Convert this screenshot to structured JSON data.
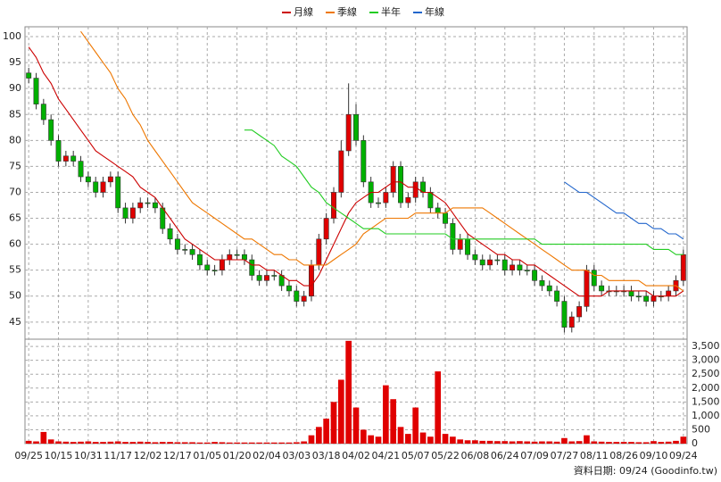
{
  "chart_data": {
    "type": "candlestick",
    "categories": [
      "09/25",
      null,
      null,
      null,
      "10/15",
      null,
      null,
      null,
      "10/31",
      null,
      null,
      null,
      "11/17",
      null,
      null,
      null,
      "12/02",
      null,
      null,
      null,
      "12/17",
      null,
      null,
      null,
      "01/05",
      null,
      null,
      null,
      "01/20",
      null,
      null,
      null,
      "02/04",
      null,
      null,
      null,
      "03/03",
      null,
      null,
      null,
      "03/18",
      null,
      null,
      null,
      "04/02",
      null,
      null,
      null,
      "04/21",
      null,
      null,
      null,
      "05/07",
      null,
      null,
      null,
      "05/22",
      null,
      null,
      null,
      "06/08",
      null,
      null,
      null,
      "06/24",
      null,
      null,
      null,
      "07/09",
      null,
      null,
      null,
      "07/27",
      null,
      null,
      null,
      "08/11",
      null,
      null,
      null,
      "08/26",
      null,
      null,
      null,
      "09/10",
      null,
      null,
      null,
      "09/24"
    ],
    "open": [
      93,
      92,
      87,
      84,
      80,
      76,
      77,
      76,
      73,
      72,
      70,
      72,
      73,
      67,
      65,
      67,
      68,
      68,
      67,
      63,
      61,
      59,
      59,
      58,
      56,
      55,
      55,
      57,
      58,
      58,
      57,
      54,
      53,
      54,
      54,
      52,
      51,
      49,
      50,
      56,
      61,
      65,
      70,
      78,
      85,
      80,
      72,
      68,
      68,
      70,
      75,
      68,
      69,
      72,
      70,
      67,
      66,
      64,
      59,
      61,
      58,
      57,
      56,
      57,
      57,
      55,
      56,
      55,
      55,
      53,
      52,
      51,
      49,
      44,
      46,
      48,
      55,
      52,
      51,
      51,
      51,
      51,
      50,
      50,
      49,
      50,
      50,
      51,
      53
    ],
    "high": [
      94,
      93,
      88,
      85,
      81,
      78,
      78,
      77,
      74,
      73,
      73,
      74,
      74,
      68,
      68,
      69,
      69,
      69,
      68,
      64,
      62,
      60,
      60,
      59,
      57,
      56,
      58,
      59,
      59,
      59,
      58,
      55,
      55,
      55,
      55,
      53,
      52,
      51,
      57,
      62,
      66,
      71,
      80,
      91,
      87,
      81,
      73,
      69,
      71,
      76,
      76,
      70,
      73,
      73,
      71,
      68,
      67,
      65,
      62,
      62,
      59,
      58,
      58,
      58,
      58,
      57,
      57,
      56,
      56,
      54,
      53,
      52,
      50,
      47,
      49,
      56,
      56,
      53,
      52,
      52,
      52,
      52,
      51,
      51,
      51,
      51,
      52,
      54,
      59
    ],
    "low": [
      91,
      86,
      83,
      79,
      75,
      75,
      75,
      72,
      71,
      69,
      69,
      71,
      66,
      64,
      64,
      66,
      67,
      66,
      62,
      60,
      58,
      58,
      57,
      55,
      54,
      54,
      54,
      56,
      57,
      56,
      53,
      52,
      52,
      53,
      51,
      50,
      48,
      48,
      49,
      55,
      60,
      64,
      69,
      77,
      79,
      71,
      67,
      67,
      67,
      69,
      67,
      67,
      68,
      69,
      66,
      65,
      63,
      58,
      58,
      57,
      56,
      55,
      55,
      56,
      54,
      54,
      54,
      54,
      52,
      51,
      50,
      48,
      43,
      43,
      45,
      47,
      51,
      50,
      50,
      50,
      50,
      49,
      49,
      48,
      48,
      49,
      49,
      50,
      52
    ],
    "close": [
      92,
      87,
      84,
      80,
      76,
      77,
      76,
      73,
      72,
      70,
      72,
      73,
      67,
      65,
      67,
      68,
      68,
      67,
      63,
      61,
      59,
      59,
      58,
      56,
      55,
      55,
      57,
      58,
      58,
      57,
      54,
      53,
      54,
      54,
      52,
      51,
      49,
      50,
      56,
      61,
      65,
      70,
      78,
      85,
      80,
      72,
      68,
      68,
      70,
      75,
      68,
      69,
      72,
      70,
      67,
      66,
      64,
      59,
      61,
      58,
      57,
      56,
      57,
      57,
      55,
      56,
      55,
      55,
      53,
      52,
      51,
      49,
      44,
      46,
      48,
      55,
      52,
      51,
      51,
      51,
      51,
      50,
      50,
      49,
      50,
      50,
      51,
      53,
      58
    ],
    "up_color": "#e00000",
    "down_color": "#00b000",
    "volume": {
      "color": "#e00000",
      "values": [
        100,
        80,
        420,
        150,
        80,
        70,
        60,
        70,
        80,
        60,
        60,
        70,
        80,
        60,
        60,
        70,
        60,
        50,
        60,
        60,
        50,
        50,
        50,
        40,
        40,
        60,
        50,
        40,
        40,
        40,
        40,
        40,
        40,
        40,
        40,
        40,
        50,
        80,
        300,
        600,
        900,
        1500,
        2300,
        3700,
        1300,
        500,
        300,
        250,
        2100,
        1600,
        600,
        350,
        1300,
        400,
        250,
        2600,
        350,
        250,
        150,
        120,
        120,
        100,
        100,
        90,
        90,
        80,
        90,
        80,
        70,
        80,
        80,
        70,
        200,
        80,
        90,
        300,
        80,
        70,
        60,
        60,
        60,
        60,
        50,
        50,
        90,
        60,
        70,
        100,
        250
      ]
    },
    "series": [
      {
        "name": "月線",
        "color": "#cc0000",
        "values": [
          98,
          96,
          93,
          91,
          88,
          86,
          84,
          82,
          80,
          78,
          77,
          76,
          75,
          74,
          73,
          71,
          70,
          69,
          67,
          65,
          63,
          61,
          60,
          59,
          58,
          57,
          57,
          57,
          57,
          57,
          56,
          56,
          55,
          55,
          54,
          53,
          53,
          52,
          52,
          54,
          57,
          60,
          63,
          66,
          68,
          69,
          70,
          70,
          71,
          72,
          72,
          71,
          71,
          70,
          70,
          69,
          68,
          66,
          64,
          62,
          61,
          60,
          59,
          58,
          58,
          57,
          57,
          56,
          56,
          55,
          54,
          53,
          52,
          51,
          50,
          50,
          50,
          50,
          51,
          51,
          51,
          51,
          51,
          51,
          50,
          50,
          50,
          50,
          51
        ]
      },
      {
        "name": "季線",
        "color": "#ee7700",
        "values": [
          null,
          null,
          null,
          null,
          null,
          null,
          null,
          101,
          99,
          97,
          95,
          93,
          90,
          88,
          85,
          83,
          80,
          78,
          76,
          74,
          72,
          70,
          68,
          67,
          66,
          65,
          64,
          63,
          62,
          61,
          61,
          60,
          59,
          58,
          58,
          57,
          57,
          56,
          56,
          56,
          56,
          57,
          58,
          59,
          60,
          62,
          63,
          64,
          65,
          65,
          65,
          65,
          66,
          66,
          66,
          66,
          66,
          67,
          67,
          67,
          67,
          67,
          66,
          65,
          64,
          63,
          62,
          61,
          60,
          59,
          58,
          57,
          56,
          55,
          55,
          55,
          54,
          54,
          53,
          53,
          53,
          53,
          53,
          52,
          52,
          52,
          52,
          52,
          51
        ]
      },
      {
        "name": "半年",
        "color": "#22cc22",
        "values": [
          null,
          null,
          null,
          null,
          null,
          null,
          null,
          null,
          null,
          null,
          null,
          null,
          null,
          null,
          null,
          null,
          null,
          null,
          null,
          null,
          null,
          null,
          null,
          null,
          null,
          null,
          null,
          null,
          null,
          82,
          82,
          81,
          80,
          79,
          77,
          76,
          75,
          73,
          71,
          70,
          68,
          67,
          66,
          65,
          64,
          63,
          63,
          63,
          62,
          62,
          62,
          62,
          62,
          62,
          62,
          62,
          62,
          61,
          61,
          61,
          61,
          61,
          61,
          61,
          61,
          61,
          61,
          61,
          61,
          60,
          60,
          60,
          60,
          60,
          60,
          60,
          60,
          60,
          60,
          60,
          60,
          60,
          60,
          60,
          59,
          59,
          59,
          58,
          58
        ]
      },
      {
        "name": "年線",
        "color": "#2266cc",
        "values": [
          null,
          null,
          null,
          null,
          null,
          null,
          null,
          null,
          null,
          null,
          null,
          null,
          null,
          null,
          null,
          null,
          null,
          null,
          null,
          null,
          null,
          null,
          null,
          null,
          null,
          null,
          null,
          null,
          null,
          null,
          null,
          null,
          null,
          null,
          null,
          null,
          null,
          null,
          null,
          null,
          null,
          null,
          null,
          null,
          null,
          null,
          null,
          null,
          null,
          null,
          null,
          null,
          null,
          null,
          null,
          null,
          null,
          null,
          null,
          null,
          null,
          null,
          null,
          null,
          null,
          null,
          null,
          null,
          null,
          null,
          null,
          null,
          72,
          71,
          70,
          70,
          69,
          68,
          67,
          66,
          66,
          65,
          64,
          64,
          63,
          63,
          62,
          62,
          61
        ]
      }
    ],
    "ylim": [
      41.7,
      101.9
    ],
    "yticks": [
      45,
      50,
      55,
      60,
      65,
      70,
      75,
      80,
      85,
      90,
      95,
      100
    ],
    "y2lim": [
      0,
      3760
    ],
    "y2ticks": [
      0,
      500,
      {
        "value": 1000,
        "label": "1,000"
      },
      {
        "value": 1500,
        "label": "1,500"
      },
      {
        "value": 2000,
        "label": "2,000"
      },
      {
        "value": 2500,
        "label": "2,500"
      },
      {
        "value": 3000,
        "label": "3,000"
      },
      {
        "value": 3500,
        "label": "3,500"
      }
    ],
    "grid": true,
    "source": "資料日期: 09/24 (Goodinfo.tw)"
  }
}
